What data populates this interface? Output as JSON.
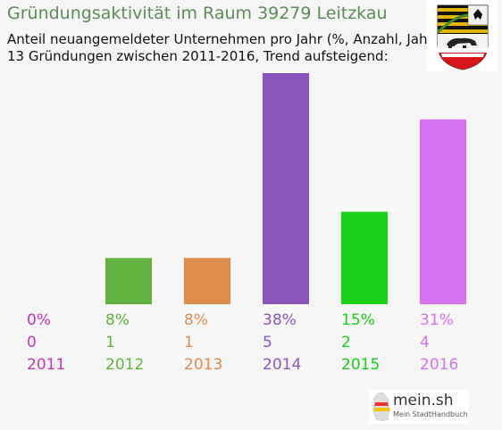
{
  "header": {
    "title": "Gründungsaktivität im Raum 39279 Leitzkau",
    "subtitle_line1": "Anteil neuangemeldeter Unternehmen pro Jahr (%, Anzahl, Jahr)",
    "subtitle_line2": "13 Gründungen zwischen 2011-2016, Trend aufsteigend:"
  },
  "crest": {
    "icon": "sachsen-anhalt-coat-of-arms-icon"
  },
  "logo": {
    "name": "mein.sh",
    "tagline": "Mein StadtHandbuch",
    "icon": "germany-map-icon"
  },
  "chart_data": {
    "type": "bar",
    "categories": [
      "2011",
      "2012",
      "2013",
      "2014",
      "2015",
      "2016"
    ],
    "percent_labels": [
      "0%",
      "8%",
      "8%",
      "38%",
      "15%",
      "31%"
    ],
    "values": [
      0,
      1,
      1,
      5,
      2,
      4
    ],
    "colors": [
      "#cc33bb",
      "#63b340",
      "#e08c4c",
      "#8a55bd",
      "#1ad11a",
      "#d472f2"
    ],
    "ylim": [
      0,
      5
    ],
    "grid": false,
    "legend": "none"
  }
}
